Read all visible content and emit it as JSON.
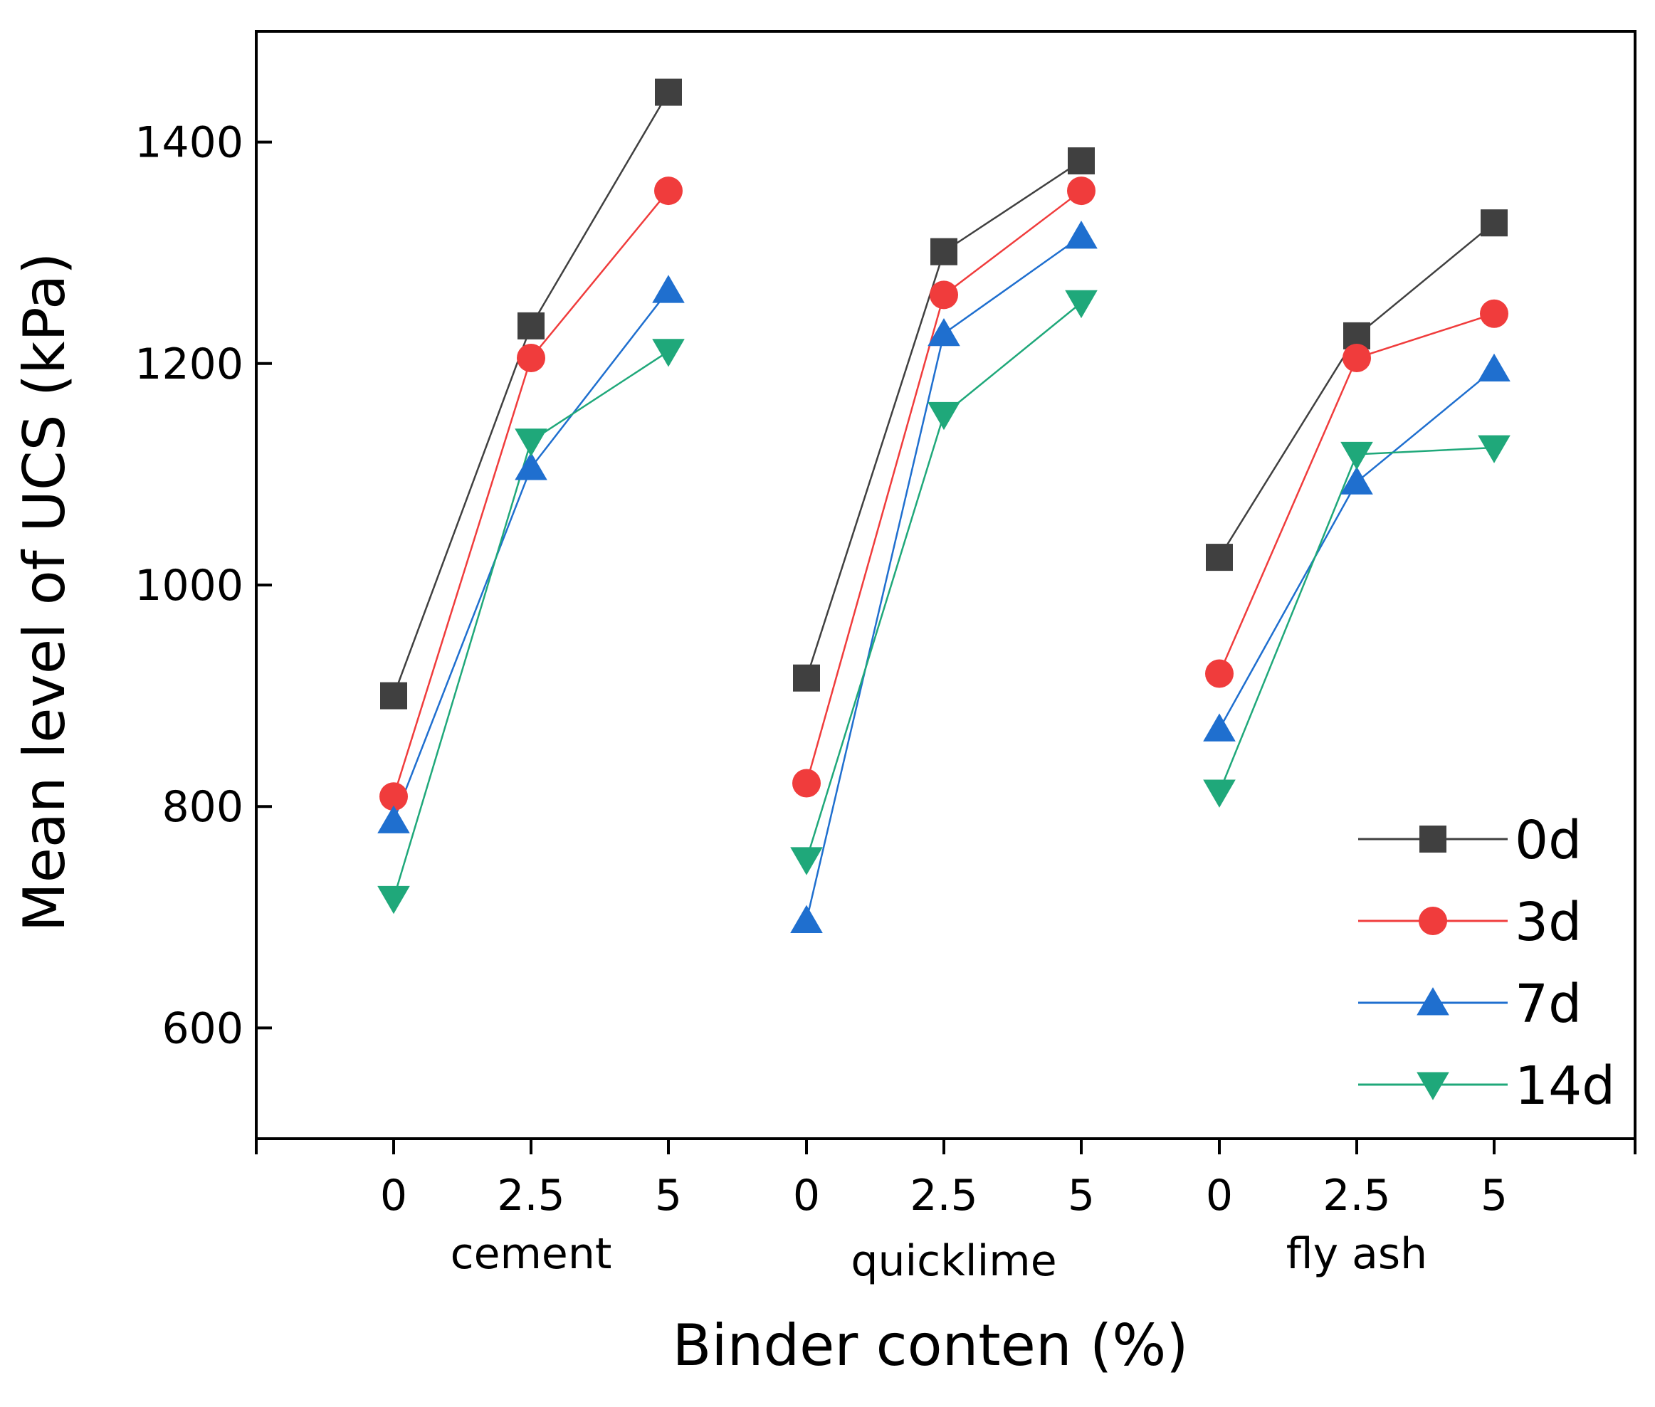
{
  "chart_data": {
    "type": "line",
    "title": "",
    "xlabel": "Binder conten  (%)",
    "ylabel": "Mean level of UCS (kPa)",
    "ylim": [
      500,
      1500
    ],
    "yticks": [
      600,
      800,
      1000,
      1200,
      1400
    ],
    "groups": [
      {
        "name": "cement",
        "categories": [
          "0",
          "2.5",
          "5"
        ]
      },
      {
        "name": "quicklime",
        "categories": [
          "0",
          "2.5",
          "5"
        ]
      },
      {
        "name": "fly ash",
        "categories": [
          "0",
          "2.5",
          "5"
        ]
      }
    ],
    "series": [
      {
        "name": "0d",
        "color": "#404040",
        "marker": "square",
        "values": [
          [
            900,
            1234,
            1445
          ],
          [
            916,
            1301,
            1383
          ],
          [
            1025,
            1225,
            1327
          ]
        ]
      },
      {
        "name": "3d",
        "color": "#f03c3c",
        "marker": "circle",
        "values": [
          [
            809,
            1205,
            1356
          ],
          [
            821,
            1262,
            1356
          ],
          [
            920,
            1205,
            1245
          ]
        ]
      },
      {
        "name": "7d",
        "color": "#1f6fcf",
        "marker": "triangle-up",
        "values": [
          [
            787,
            1106,
            1266
          ],
          [
            697,
            1227,
            1315
          ],
          [
            870,
            1093,
            1195
          ]
        ]
      },
      {
        "name": "14d",
        "color": "#1fa87a",
        "marker": "triangle-down",
        "values": [
          [
            717,
            1130,
            1211
          ],
          [
            752,
            1154,
            1255
          ],
          [
            813,
            1118,
            1124
          ]
        ]
      }
    ],
    "legend_position": "bottom-right",
    "grid": false
  }
}
